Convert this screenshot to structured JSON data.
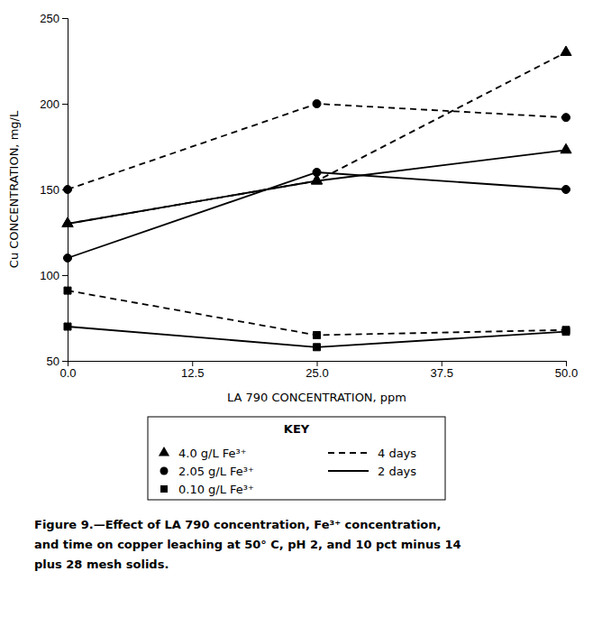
{
  "chart_data": {
    "type": "line",
    "x": [
      0.0,
      25.0,
      50.0
    ],
    "series": [
      {
        "values": [
          130,
          155,
          230
        ],
        "marker": "triangle",
        "line_style": "dashed"
      },
      {
        "values": [
          150,
          200,
          192
        ],
        "marker": "circle",
        "line_style": "dashed"
      },
      {
        "values": [
          91,
          65,
          68
        ],
        "marker": "square",
        "line_style": "dashed"
      },
      {
        "values": [
          130,
          155,
          173
        ],
        "marker": "triangle",
        "line_style": "solid"
      },
      {
        "values": [
          110,
          160,
          150
        ],
        "marker": "circle",
        "line_style": "solid"
      },
      {
        "values": [
          70,
          58,
          67
        ],
        "marker": "square",
        "line_style": "solid"
      }
    ],
    "color": "#000000",
    "xlim": [
      0,
      50
    ],
    "ylim": [
      50,
      250
    ],
    "xticks": [
      {
        "value": 0,
        "label": "0.0"
      },
      12.5,
      {
        "value": 25,
        "label": "25.0"
      },
      37.5,
      {
        "value": 50,
        "label": "50.0"
      }
    ],
    "yticks": [
      50,
      100,
      150,
      200,
      250
    ],
    "xlabel": "LA 790 CONCENTRATION, ppm",
    "ylabel": "Cu CONCENTRATION, mg/L",
    "grid": false,
    "legend": "bottom",
    "legend_title": "KEY",
    "legend_markers": [
      {
        "label": "4.0 g/L Fe³⁺",
        "marker": "triangle"
      },
      {
        "label": "2.05 g/L Fe³⁺",
        "marker": "circle"
      },
      {
        "label": "0.10 g/L Fe³⁺",
        "marker": "square"
      }
    ],
    "legend_lines": [
      {
        "label": "4 days",
        "line_style": "dashed"
      },
      {
        "label": "2 days",
        "line_style": "solid"
      }
    ],
    "annotations": [
      "Figure 9.—Effect of LA 790 concentration, Fe³⁺ concentration,",
      "and time on copper leaching at 50° C, pH 2, and 10 pct minus 14",
      "plus 28 mesh solids."
    ]
  }
}
